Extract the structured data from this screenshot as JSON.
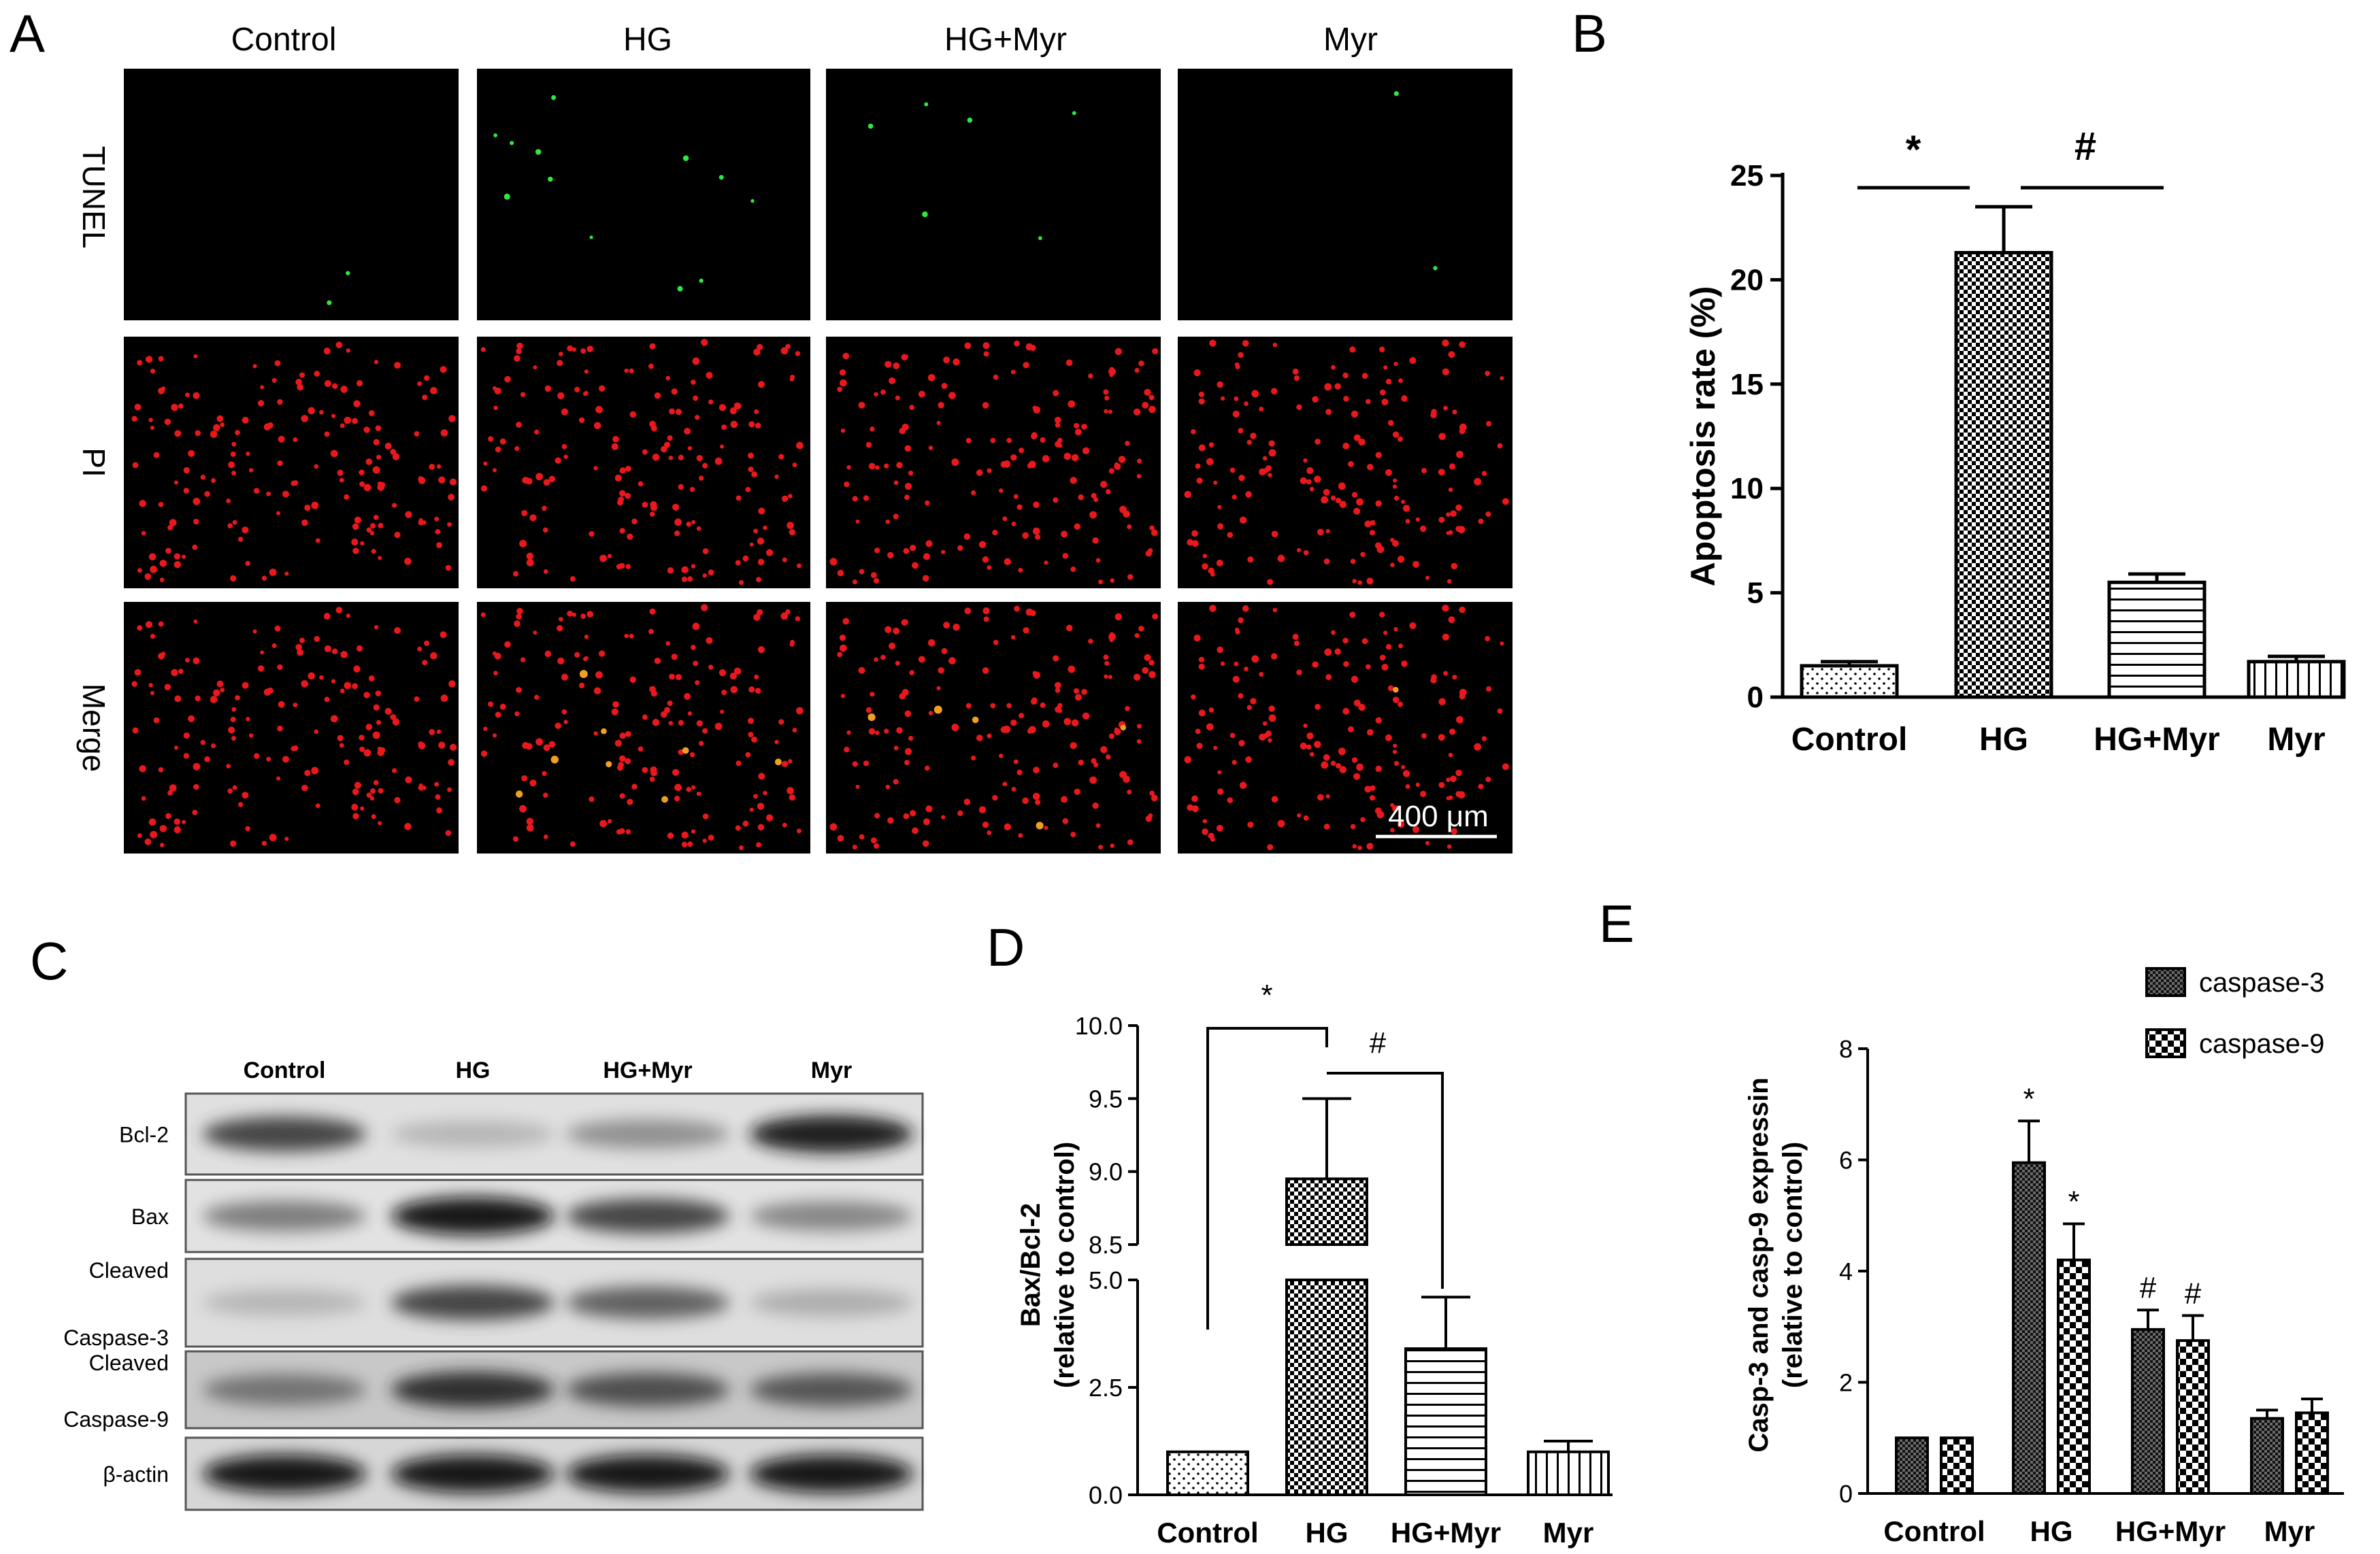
{
  "panel_labels": [
    "A",
    "B",
    "C",
    "D",
    "E"
  ],
  "panel_a": {
    "columns": [
      "Control",
      "HG",
      "HG+Myr",
      "Myr"
    ],
    "rows": [
      "TUNEL",
      "PI",
      "Merge"
    ],
    "scale_bar": "400 μm"
  },
  "panel_c": {
    "columns": [
      "Control",
      "HG",
      "HG+Myr",
      "Myr"
    ],
    "blots": [
      {
        "label_lines": [
          "Bcl-2"
        ],
        "intensity": [
          0.75,
          0.15,
          0.35,
          0.95
        ],
        "bg": "#e0e0e0"
      },
      {
        "label_lines": [
          "Bax"
        ],
        "intensity": [
          0.45,
          1.0,
          0.75,
          0.4
        ],
        "bg": "#e2e2e2"
      },
      {
        "label_lines": [
          "Cleaved",
          "Caspase-3"
        ],
        "intensity": [
          0.15,
          0.75,
          0.6,
          0.2
        ],
        "bg": "#dedede"
      },
      {
        "label_lines": [
          "Cleaved",
          "Caspase-9"
        ],
        "intensity": [
          0.5,
          0.85,
          0.7,
          0.65
        ],
        "bg": "#c8c8c8"
      },
      {
        "label_lines": [
          "β-actin"
        ],
        "intensity": [
          1.0,
          1.0,
          1.0,
          1.0
        ],
        "bg": "#d6d6d6"
      }
    ]
  },
  "chart_data": [
    {
      "panel": "B",
      "type": "bar",
      "categories": [
        "Control",
        "HG",
        "HG+Myr",
        "Myr"
      ],
      "values": [
        1.5,
        21.3,
        5.5,
        1.7
      ],
      "errors": [
        0.2,
        2.2,
        0.4,
        0.25
      ],
      "patterns": [
        "dots",
        "checker",
        "hlines",
        "vlines"
      ],
      "ylabel": "Apoptosis rate (%)",
      "ylim": [
        0,
        25
      ],
      "yticks": [
        "0",
        "5",
        "10",
        "15",
        "20",
        "25"
      ],
      "significance": [
        {
          "symbol": "*",
          "from": 0,
          "to": 1
        },
        {
          "symbol": "#",
          "from": 1,
          "to": 2
        }
      ]
    },
    {
      "panel": "D",
      "type": "bar",
      "categories": [
        "Control",
        "HG",
        "HG+Myr",
        "Myr"
      ],
      "values": [
        1.0,
        8.95,
        3.4,
        1.0
      ],
      "errors": [
        0.0,
        0.55,
        1.2,
        0.25
      ],
      "patterns": [
        "dots",
        "checker",
        "hlines",
        "vlines"
      ],
      "ylabel_lines": [
        "Bax/Bcl-2",
        "(relative to control)"
      ],
      "axis_break": {
        "lower": [
          0,
          5.0
        ],
        "upper": [
          8.5,
          10.0
        ]
      },
      "yticks_lower": [
        "0.0",
        "2.5",
        "5.0"
      ],
      "yticks_upper": [
        "8.5",
        "9.0",
        "9.5",
        "10.0"
      ],
      "significance": [
        {
          "symbol": "*",
          "from": 0,
          "to": 1
        },
        {
          "symbol": "#",
          "from": 1,
          "to": 2
        }
      ]
    },
    {
      "panel": "E",
      "type": "bar",
      "categories": [
        "Control",
        "HG",
        "HG+Myr",
        "Myr"
      ],
      "series": [
        {
          "name": "caspase-3",
          "values": [
            1.0,
            5.95,
            2.95,
            1.35
          ],
          "errors": [
            0.0,
            0.75,
            0.35,
            0.15
          ],
          "marks": [
            "",
            "*",
            "#",
            ""
          ],
          "pattern": "dense"
        },
        {
          "name": "caspase-9",
          "values": [
            1.0,
            4.2,
            2.75,
            1.45
          ],
          "errors": [
            0.0,
            0.65,
            0.45,
            0.25
          ],
          "marks": [
            "",
            "*",
            "#",
            ""
          ],
          "pattern": "checkerLarge"
        }
      ],
      "ylabel_lines": [
        "Casp-3 and casp-9 expressin",
        "(relative to control)"
      ],
      "ylim": [
        0,
        8
      ],
      "yticks": [
        "0",
        "2",
        "4",
        "6",
        "8"
      ]
    }
  ]
}
